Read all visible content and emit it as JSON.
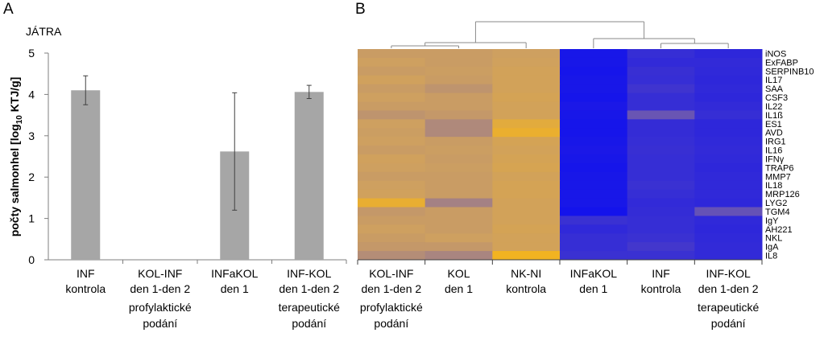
{
  "chart_data": [
    {
      "type": "bar",
      "panel_label": "A",
      "title": "JÁTRA",
      "ylabel_main": "počty salmonhel [log",
      "ylabel_sub": "10",
      "ylabel_end": " KTJ/g]",
      "ylim": [
        0,
        5
      ],
      "yticks": [
        "0",
        "1",
        "2",
        "3",
        "4",
        "5"
      ],
      "categories": [
        [
          "INF",
          "kontrola"
        ],
        [
          "KOL-INF",
          "den 1-den 2"
        ],
        [
          "INFaKOL",
          "den 1"
        ],
        [
          "INF-KOL",
          "den 1-den 2"
        ]
      ],
      "values": [
        4.1,
        0,
        2.62,
        4.06
      ],
      "error": [
        0.35,
        0,
        1.42,
        0.16
      ],
      "groups": [
        {
          "label": [
            "profylaktické",
            "podání"
          ],
          "category_index": 1
        },
        {
          "label": [
            "terapeutické",
            "podání"
          ],
          "category_index": 3
        }
      ],
      "bar_color": "#a6a6a6"
    },
    {
      "type": "heatmap",
      "panel_label": "B",
      "columns": [
        [
          "KOL-INF",
          "den 1-den 2"
        ],
        [
          "KOL",
          "den 1"
        ],
        [
          "NK-NI",
          "kontrola"
        ],
        [
          "INFaKOL",
          "den 1"
        ],
        [
          "INF",
          "kontrola"
        ],
        [
          "INF-KOL",
          "den 1-den 2"
        ]
      ],
      "rows": [
        "iNOS",
        "ExFABP",
        "SERPINB10",
        "IL17",
        "SAA",
        "CSF3",
        "IL22",
        "IL1ß",
        "ES1",
        "AVD",
        "IRG1",
        "IL16",
        "IFNγ",
        "TRAP6",
        "MMP7",
        "IL18",
        "MRP126",
        "LYG2",
        "TGM4",
        "IgY",
        "AH221",
        "NKL",
        "IgA",
        "IL8"
      ],
      "groups": [
        {
          "label": [
            "profylaktické",
            "podání"
          ],
          "column_index": 0
        },
        {
          "label": [
            "terapeutické",
            "podání"
          ],
          "column_index": 5
        }
      ],
      "colors": {
        "low": "#1010ee",
        "mid": "#7a62a8",
        "high": "#f2b321"
      },
      "values": [
        [
          0.8,
          0.8,
          0.82,
          0.04,
          0.18,
          0.14
        ],
        [
          0.82,
          0.8,
          0.83,
          0.04,
          0.16,
          0.16
        ],
        [
          0.8,
          0.81,
          0.84,
          0.03,
          0.19,
          0.15
        ],
        [
          0.83,
          0.8,
          0.84,
          0.04,
          0.18,
          0.14
        ],
        [
          0.8,
          0.76,
          0.84,
          0.04,
          0.22,
          0.15
        ],
        [
          0.82,
          0.8,
          0.85,
          0.03,
          0.18,
          0.14
        ],
        [
          0.8,
          0.8,
          0.84,
          0.05,
          0.18,
          0.16
        ],
        [
          0.76,
          0.78,
          0.84,
          0.04,
          0.42,
          0.18
        ],
        [
          0.82,
          0.7,
          0.92,
          0.03,
          0.17,
          0.14
        ],
        [
          0.81,
          0.7,
          0.96,
          0.03,
          0.17,
          0.14
        ],
        [
          0.82,
          0.8,
          0.85,
          0.04,
          0.18,
          0.15
        ],
        [
          0.8,
          0.81,
          0.84,
          0.05,
          0.19,
          0.16
        ],
        [
          0.83,
          0.8,
          0.85,
          0.04,
          0.18,
          0.15
        ],
        [
          0.82,
          0.81,
          0.86,
          0.03,
          0.18,
          0.14
        ],
        [
          0.8,
          0.8,
          0.84,
          0.04,
          0.18,
          0.15
        ],
        [
          0.82,
          0.8,
          0.85,
          0.04,
          0.2,
          0.15
        ],
        [
          0.83,
          0.8,
          0.85,
          0.04,
          0.18,
          0.15
        ],
        [
          0.95,
          0.66,
          0.84,
          0.04,
          0.16,
          0.14
        ],
        [
          0.78,
          0.8,
          0.84,
          0.02,
          0.17,
          0.4
        ],
        [
          0.8,
          0.8,
          0.84,
          0.2,
          0.18,
          0.15
        ],
        [
          0.82,
          0.8,
          0.85,
          0.15,
          0.18,
          0.14
        ],
        [
          0.8,
          0.82,
          0.84,
          0.18,
          0.2,
          0.15
        ],
        [
          0.78,
          0.78,
          0.84,
          0.18,
          0.24,
          0.16
        ],
        [
          0.72,
          0.68,
          1.0,
          0.2,
          0.2,
          0.16
        ]
      ]
    }
  ]
}
